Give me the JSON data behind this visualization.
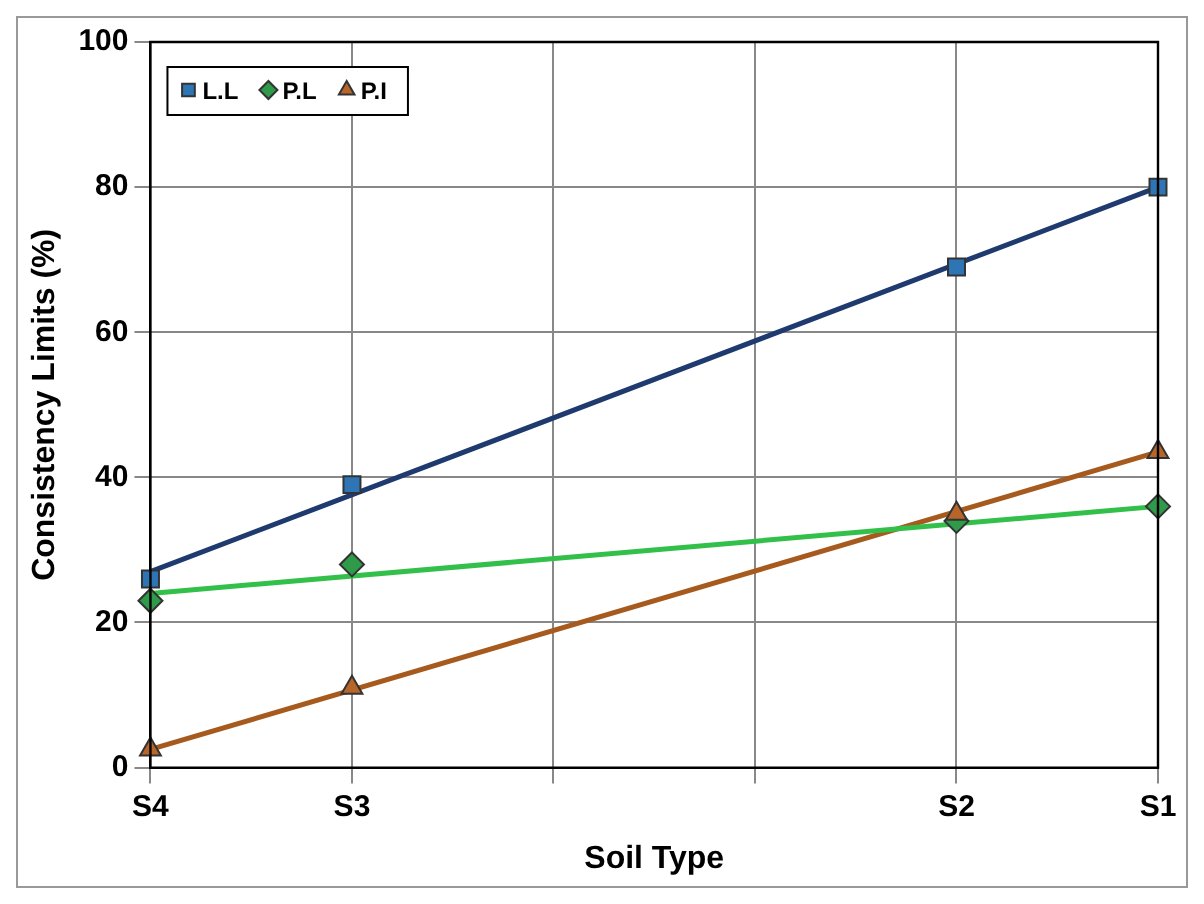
{
  "chart_data": {
    "type": "scatter",
    "xlabel": "Soil Type",
    "ylabel": "Consistency Limits (%)",
    "categories": [
      "S4",
      "S3",
      null,
      null,
      "S2",
      "S1"
    ],
    "ylim": [
      0,
      100
    ],
    "yticks": [
      0,
      20,
      40,
      60,
      80,
      100
    ],
    "grid": true,
    "legend": "top left",
    "series": [
      {
        "name": "L.L",
        "marker": "square",
        "color": "#2e75b6",
        "values": [
          26,
          39,
          null,
          null,
          69,
          80
        ]
      },
      {
        "name": "P.L",
        "marker": "diamond",
        "color": "#2e9a4a",
        "values": [
          23,
          28,
          null,
          null,
          34,
          36
        ]
      },
      {
        "name": "P.I",
        "marker": "triangle",
        "color": "#b8652a",
        "values": [
          2.5,
          11,
          null,
          null,
          35,
          43.5
        ]
      },
      {
        "type": "line",
        "marker": "none",
        "color": "#1f3a6e",
        "values": [
          27,
          null,
          null,
          null,
          null,
          80
        ]
      },
      {
        "type": "line",
        "marker": "none",
        "color": "#33c04a",
        "values": [
          24,
          null,
          null,
          null,
          null,
          36
        ]
      },
      {
        "type": "line",
        "marker": "none",
        "color": "#a65a1e",
        "values": [
          2.5,
          null,
          null,
          null,
          null,
          43.5
        ]
      }
    ]
  }
}
